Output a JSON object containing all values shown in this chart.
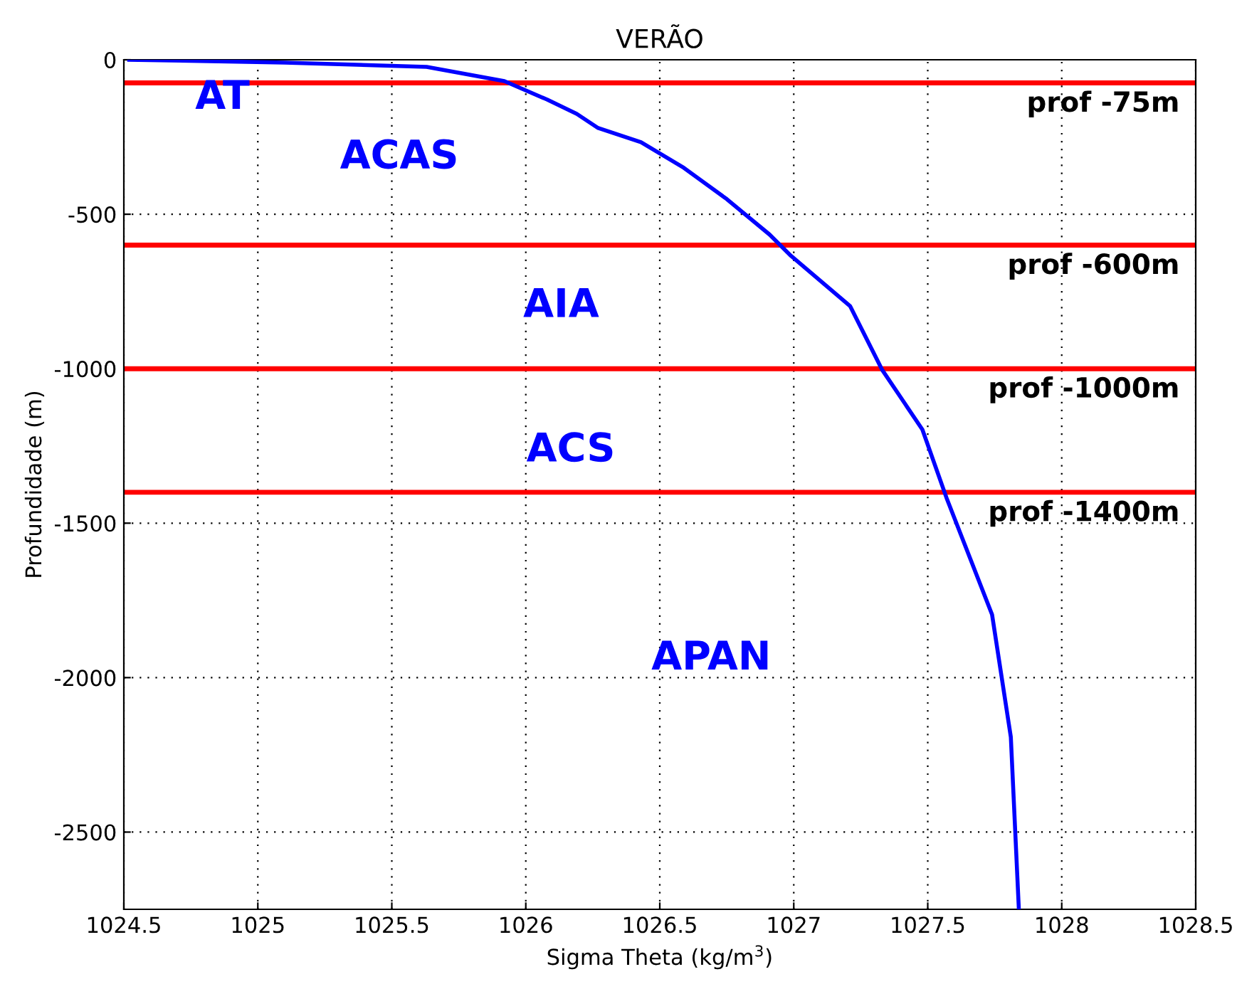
{
  "chart_data": {
    "type": "line",
    "title": "VERÃO",
    "xlabel": "Sigma Theta (kg/m$^{3}$)",
    "ylabel": "Profundidade (m)",
    "x": [
      1024.52,
      1025.1,
      1025.63,
      1025.92,
      1026.08,
      1026.19,
      1026.27,
      1026.43,
      1026.59,
      1026.75,
      1026.91,
      1026.99,
      1027.21,
      1027.33,
      1027.48,
      1027.57,
      1027.74,
      1027.81,
      1027.84
    ],
    "series": [
      {
        "color": "#0000ff",
        "values": [
          0,
          -9,
          -23,
          -69,
          -129,
          -175,
          -221,
          -267,
          -350,
          -451,
          -566,
          -635,
          -797,
          -1004,
          -1197,
          -1418,
          -1796,
          -2192,
          -2750
        ]
      }
    ],
    "xlim": [
      1024.5,
      1028.5
    ],
    "xticks": [
      1024.5,
      1025,
      1025.5,
      1026,
      1026.5,
      1027,
      1027.5,
      1028,
      1028.5
    ],
    "ylim": [
      -2750,
      0
    ],
    "yticks": [
      -2500,
      -2000,
      -1500,
      -1000,
      -500,
      0
    ],
    "grid": true,
    "line_style": "solid",
    "marker": "none",
    "legend": false,
    "ref_lines": [
      {
        "axis": "y",
        "value": -75,
        "label": "prof -75m",
        "color": "#ff0000"
      },
      {
        "axis": "y",
        "value": -600,
        "label": "prof -600m",
        "color": "#ff0000"
      },
      {
        "axis": "y",
        "value": -1000,
        "label": "prof -1000m",
        "color": "#ff0000"
      },
      {
        "axis": "y",
        "value": -1400,
        "label": "prof -1400m",
        "color": "#ff0000"
      }
    ],
    "annotations": [
      "AT",
      "ACAS",
      "AIA",
      "ACS",
      "APAN"
    ]
  }
}
